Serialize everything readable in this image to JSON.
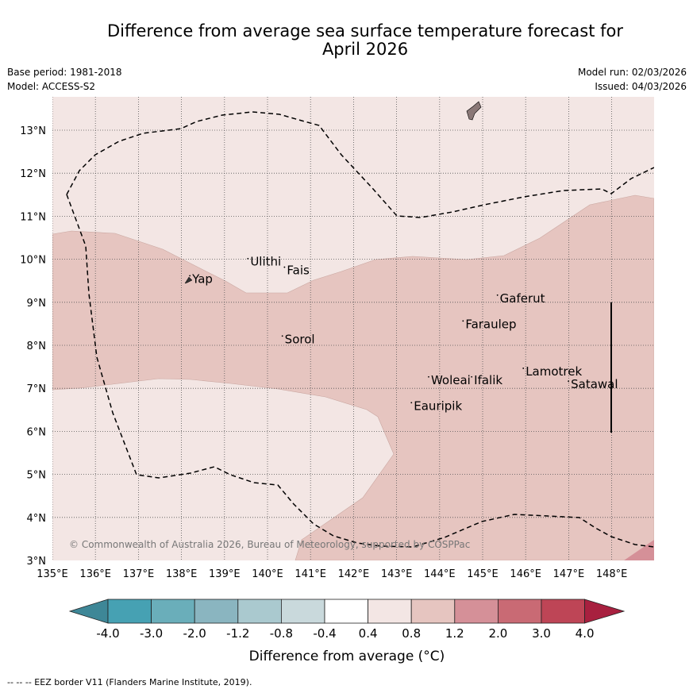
{
  "header": {
    "title_line1": "Difference from average sea surface temperature forecast for",
    "title_line2": "April 2026",
    "base_period": "Base period: 1981-2018",
    "model": "Model: ACCESS-S2",
    "model_run": "Model run: 02/03/2026",
    "issued": "Issued: 04/03/2026"
  },
  "map": {
    "lon_range": [
      135,
      149
    ],
    "lat_range": [
      3,
      13.8
    ],
    "lon_ticks": [
      "135°E",
      "136°E",
      "137°E",
      "138°E",
      "139°E",
      "140°E",
      "141°E",
      "142°E",
      "143°E",
      "144°E",
      "145°E",
      "146°E",
      "147°E",
      "148°E"
    ],
    "lat_ticks": [
      "3°N",
      "4°N",
      "5°N",
      "6°N",
      "7°N",
      "8°N",
      "9°N",
      "10°N",
      "11°N",
      "12°N",
      "13°N"
    ],
    "places": [
      {
        "name": "Ulithi",
        "lon": 139.6,
        "lat": 9.85
      },
      {
        "name": "Fais",
        "lon": 140.45,
        "lat": 9.65
      },
      {
        "name": "Yap",
        "lon": 138.25,
        "lat": 9.45
      },
      {
        "name": "Gaferut",
        "lon": 145.4,
        "lat": 9.0
      },
      {
        "name": "Faraulep",
        "lon": 144.6,
        "lat": 8.4
      },
      {
        "name": "Sorol",
        "lon": 140.4,
        "lat": 8.05
      },
      {
        "name": "Woleai",
        "lon": 143.8,
        "lat": 7.1
      },
      {
        "name": "Ifalik",
        "lon": 144.8,
        "lat": 7.1
      },
      {
        "name": "Lamotrek",
        "lon": 146.0,
        "lat": 7.3
      },
      {
        "name": "Satawal",
        "lon": 147.05,
        "lat": 7.0
      },
      {
        "name": "Eauripik",
        "lon": 143.4,
        "lat": 6.5
      }
    ],
    "copyright": "© Commonwealth of Australia 2026, Bureau of Meteorology, supported by COSPPac",
    "colors": {
      "band_0.4_0.8": "#f3e6e4",
      "band_0.8_1.2": "#e6c5c0",
      "band_1.2_2.0": "#d59098",
      "eez": "#000000"
    }
  },
  "colorbar": {
    "labels": [
      "-4.0",
      "-3.0",
      "-2.0",
      "-1.2",
      "-0.8",
      "-0.4",
      "0.4",
      "0.8",
      "1.2",
      "2.0",
      "3.0",
      "4.0"
    ],
    "colors": [
      "#3e8797",
      "#46a1b3",
      "#6aaeba",
      "#8ab5c0",
      "#aac9cf",
      "#c9d9dc",
      "#ffffff",
      "#f3e6e4",
      "#e6c5c0",
      "#d59098",
      "#c96a74",
      "#be4556",
      "#a8203f"
    ],
    "label": "Difference from average (°C)"
  },
  "footer": {
    "legend": "--  --  -- EEZ border V11 (Flanders Marine Institute, 2019)."
  }
}
